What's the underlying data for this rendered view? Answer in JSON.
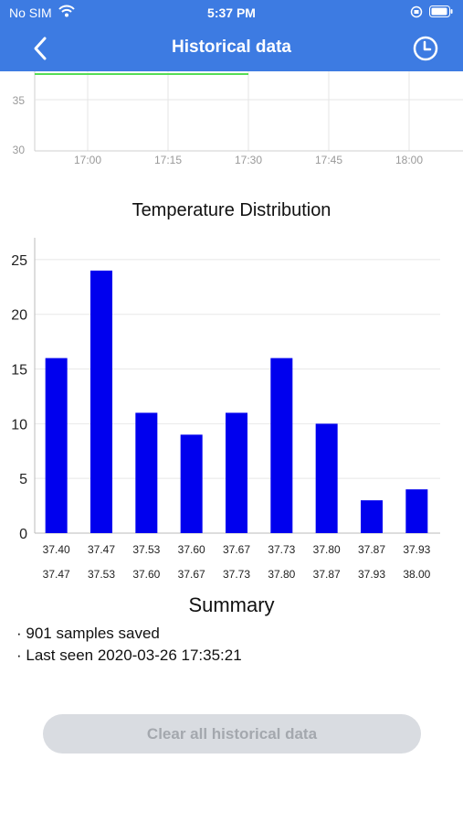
{
  "status_bar": {
    "carrier": "No SIM",
    "time": "5:37 PM"
  },
  "nav": {
    "title": "Historical data",
    "back_icon": "chevron-left-icon",
    "history_icon": "clock-icon"
  },
  "colors": {
    "header": "#3d7be2",
    "bars": "#0000ee",
    "line": "#55dd55"
  },
  "line_chart": {
    "y_ticks": [
      "35",
      "30"
    ],
    "x_ticks": [
      "17:00",
      "17:15",
      "17:30",
      "17:45",
      "18:00"
    ]
  },
  "chart_data": {
    "type": "bar",
    "title": "Temperature Distribution",
    "categories": [
      "37.40 37.47",
      "37.47 37.53",
      "37.53 37.60",
      "37.60 37.67",
      "37.67 37.73",
      "37.73 37.80",
      "37.80 37.87",
      "37.87 37.93",
      "37.93 38.00"
    ],
    "bin_start": [
      "37.40",
      "37.47",
      "37.53",
      "37.60",
      "37.67",
      "37.73",
      "37.80",
      "37.87",
      "37.93"
    ],
    "bin_end": [
      "37.47",
      "37.53",
      "37.60",
      "37.67",
      "37.73",
      "37.80",
      "37.87",
      "37.93",
      "38.00"
    ],
    "values": [
      16,
      24,
      11,
      9,
      11,
      16,
      10,
      3,
      4
    ],
    "ylim": [
      0,
      27
    ],
    "y_ticks": [
      0,
      5,
      10,
      15,
      20,
      25
    ],
    "grid": true,
    "xlabel": "",
    "ylabel": ""
  },
  "summary": {
    "title": "Summary",
    "line1": "· 901 samples saved",
    "line2": "· Last seen 2020-03-26 17:35:21"
  },
  "clear_button": {
    "label": "Clear all historical data"
  }
}
